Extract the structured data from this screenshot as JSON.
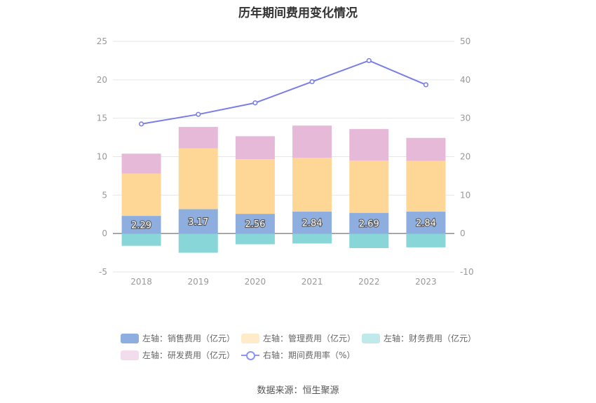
{
  "chart_data": {
    "type": "bar",
    "title": "历年期间费用变化情况",
    "categories": [
      "2018",
      "2019",
      "2020",
      "2021",
      "2022",
      "2023"
    ],
    "left_axis": {
      "ylim": [
        -5,
        25
      ],
      "ticks": [
        "-5",
        "0",
        "5",
        "10",
        "15",
        "20",
        "25"
      ]
    },
    "right_axis": {
      "ylim": [
        -10,
        50
      ],
      "ticks": [
        "-10",
        "0",
        "10",
        "20",
        "30",
        "40",
        "50"
      ]
    },
    "series": [
      {
        "name": "左轴：销售费用（亿元）",
        "type": "stacked-bar",
        "color": "#8eaee0",
        "values": [
          2.29,
          3.17,
          2.56,
          2.84,
          2.69,
          2.84
        ],
        "labels": [
          "2.29",
          "3.17",
          "2.56",
          "2.84",
          "2.69",
          "2.84"
        ]
      },
      {
        "name": "左轴：管理费用（亿元）",
        "type": "stacked-bar",
        "color": "#fed797",
        "values": [
          5.5,
          7.9,
          7.1,
          7.0,
          6.8,
          6.6
        ]
      },
      {
        "name": "左轴：财务费用（亿元）",
        "type": "stacked-bar-negative",
        "color": "#88d6d8",
        "values": [
          -1.6,
          -2.5,
          -1.4,
          -1.3,
          -1.9,
          -1.8
        ]
      },
      {
        "name": "左轴：研发费用（亿元）",
        "type": "stacked-bar",
        "color": "#e7b9d9",
        "values": [
          2.6,
          2.8,
          3.0,
          4.2,
          4.1,
          3.0
        ]
      },
      {
        "name": "右轴：期间费用率（%）",
        "type": "line",
        "color": "#7b7ee6",
        "values": [
          28.5,
          31.0,
          34.0,
          39.5,
          45.0,
          38.7
        ]
      }
    ],
    "legend": [
      {
        "label": "左轴：销售费用（亿元）",
        "color": "#8eaee0",
        "kind": "box"
      },
      {
        "label": "左轴：管理费用（亿元）",
        "color": "#fdebc9",
        "kind": "box"
      },
      {
        "label": "左轴：财务费用（亿元）",
        "color": "#bfe9ea",
        "kind": "box"
      },
      {
        "label": "左轴：研发费用（亿元）",
        "color": "#f3dcec",
        "kind": "box"
      },
      {
        "label": "右轴：期间费用率（%）",
        "color": "#8f93f2",
        "kind": "line"
      }
    ],
    "legend_position": "bottom"
  },
  "source": "数据来源：恒生聚源"
}
